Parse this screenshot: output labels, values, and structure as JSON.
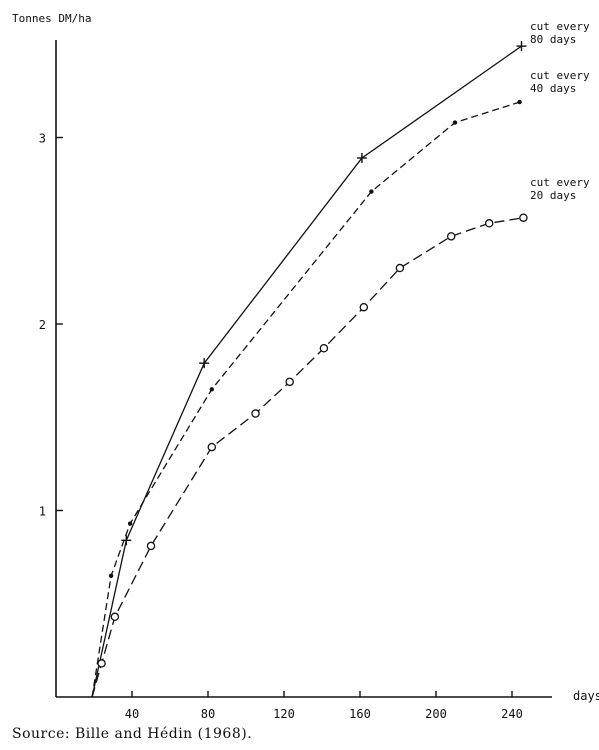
{
  "chart_data": {
    "type": "line",
    "ylabel": "Tonnes DM/ha",
    "xlabel": "days",
    "xlim": [
      0,
      250
    ],
    "ylim": [
      0,
      3.55
    ],
    "xticks": [
      40,
      80,
      120,
      160,
      200,
      240
    ],
    "yticks": [
      1,
      2,
      3
    ],
    "grid": false,
    "series": [
      {
        "name": "cut every 80 days",
        "label_lines": [
          "cut every",
          "80 days"
        ],
        "marker": "plus",
        "dash": "solid",
        "points": [
          [
            19,
            0
          ],
          [
            37,
            0.84
          ],
          [
            78,
            1.79
          ],
          [
            161,
            2.89
          ],
          [
            245,
            3.49
          ]
        ]
      },
      {
        "name": "cut every 40 days",
        "label_lines": [
          "cut every",
          "40 days"
        ],
        "marker": "dot",
        "dash": "dashed",
        "points": [
          [
            19,
            0
          ],
          [
            29,
            0.65
          ],
          [
            39,
            0.93
          ],
          [
            82,
            1.65
          ],
          [
            166,
            2.71
          ],
          [
            210,
            3.08
          ],
          [
            244,
            3.19
          ]
        ]
      },
      {
        "name": "cut every 20 days",
        "label_lines": [
          "cut every",
          "20 days"
        ],
        "marker": "circle",
        "dash": "longdash",
        "points": [
          [
            19,
            0
          ],
          [
            24,
            0.18
          ],
          [
            31,
            0.43
          ],
          [
            50,
            0.81
          ],
          [
            82,
            1.34
          ],
          [
            105,
            1.52
          ],
          [
            123,
            1.69
          ],
          [
            141,
            1.87
          ],
          [
            162,
            2.09
          ],
          [
            181,
            2.3
          ],
          [
            208,
            2.47
          ],
          [
            228,
            2.54
          ],
          [
            246,
            2.57
          ]
        ]
      }
    ]
  },
  "source": "Source:  Bille and Hédin (1968)."
}
